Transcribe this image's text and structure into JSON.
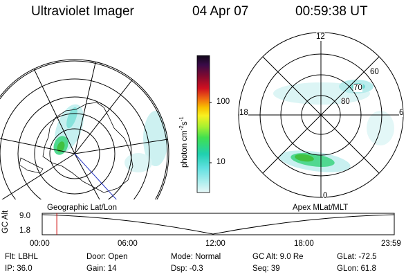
{
  "header": {
    "instrument": "Ultraviolet Imager",
    "date": "04 Apr 07",
    "time": "00:59:38 UT"
  },
  "colorbar": {
    "label": "photon cm",
    "label_exp1": "-2",
    "label_mid": "s",
    "label_exp2": "-1",
    "tick_high": "100",
    "tick_low": "10",
    "colors": [
      "#1a0a2a",
      "#4a1050",
      "#7a0a2a",
      "#b00020",
      "#e02020",
      "#f06010",
      "#f8a000",
      "#f8e020",
      "#c8f020",
      "#80f040",
      "#30e070",
      "#30d8c8",
      "#90e8e8",
      "#d8f4f4"
    ]
  },
  "left_panel": {
    "caption": "Geographic Lat/Lon"
  },
  "right_panel": {
    "caption": "Apex MLat/MLT",
    "mlt_labels": {
      "top": "12",
      "left": "18",
      "right": "6",
      "bottom": "0"
    },
    "lat_labels": [
      "60",
      "70",
      "80"
    ]
  },
  "timeline": {
    "axis_title": "GC Alt",
    "y_ticks": [
      "9.0",
      "1.8"
    ],
    "x_ticks": [
      "00:00",
      "06:00",
      "12:00",
      "18:00",
      "23:59"
    ],
    "current_time_fraction": 0.0415
  },
  "footer": {
    "row1": [
      {
        "label": "Flt:",
        "value": "LBHL"
      },
      {
        "label": "Door:",
        "value": "Open"
      },
      {
        "label": "Mode:",
        "value": "Normal"
      },
      {
        "label": "GC Alt:",
        "value": "9.0 Re"
      },
      {
        "label": "GLat:",
        "value": "-72.5"
      }
    ],
    "row2": [
      {
        "label": "IP:",
        "value": "36.0"
      },
      {
        "label": "Gain:",
        "value": "14"
      },
      {
        "label": "Dsp:",
        "value": "-0.3"
      },
      {
        "label": "Seq:",
        "value": "39"
      },
      {
        "label": "GLon:",
        "value": "61.8"
      }
    ]
  }
}
